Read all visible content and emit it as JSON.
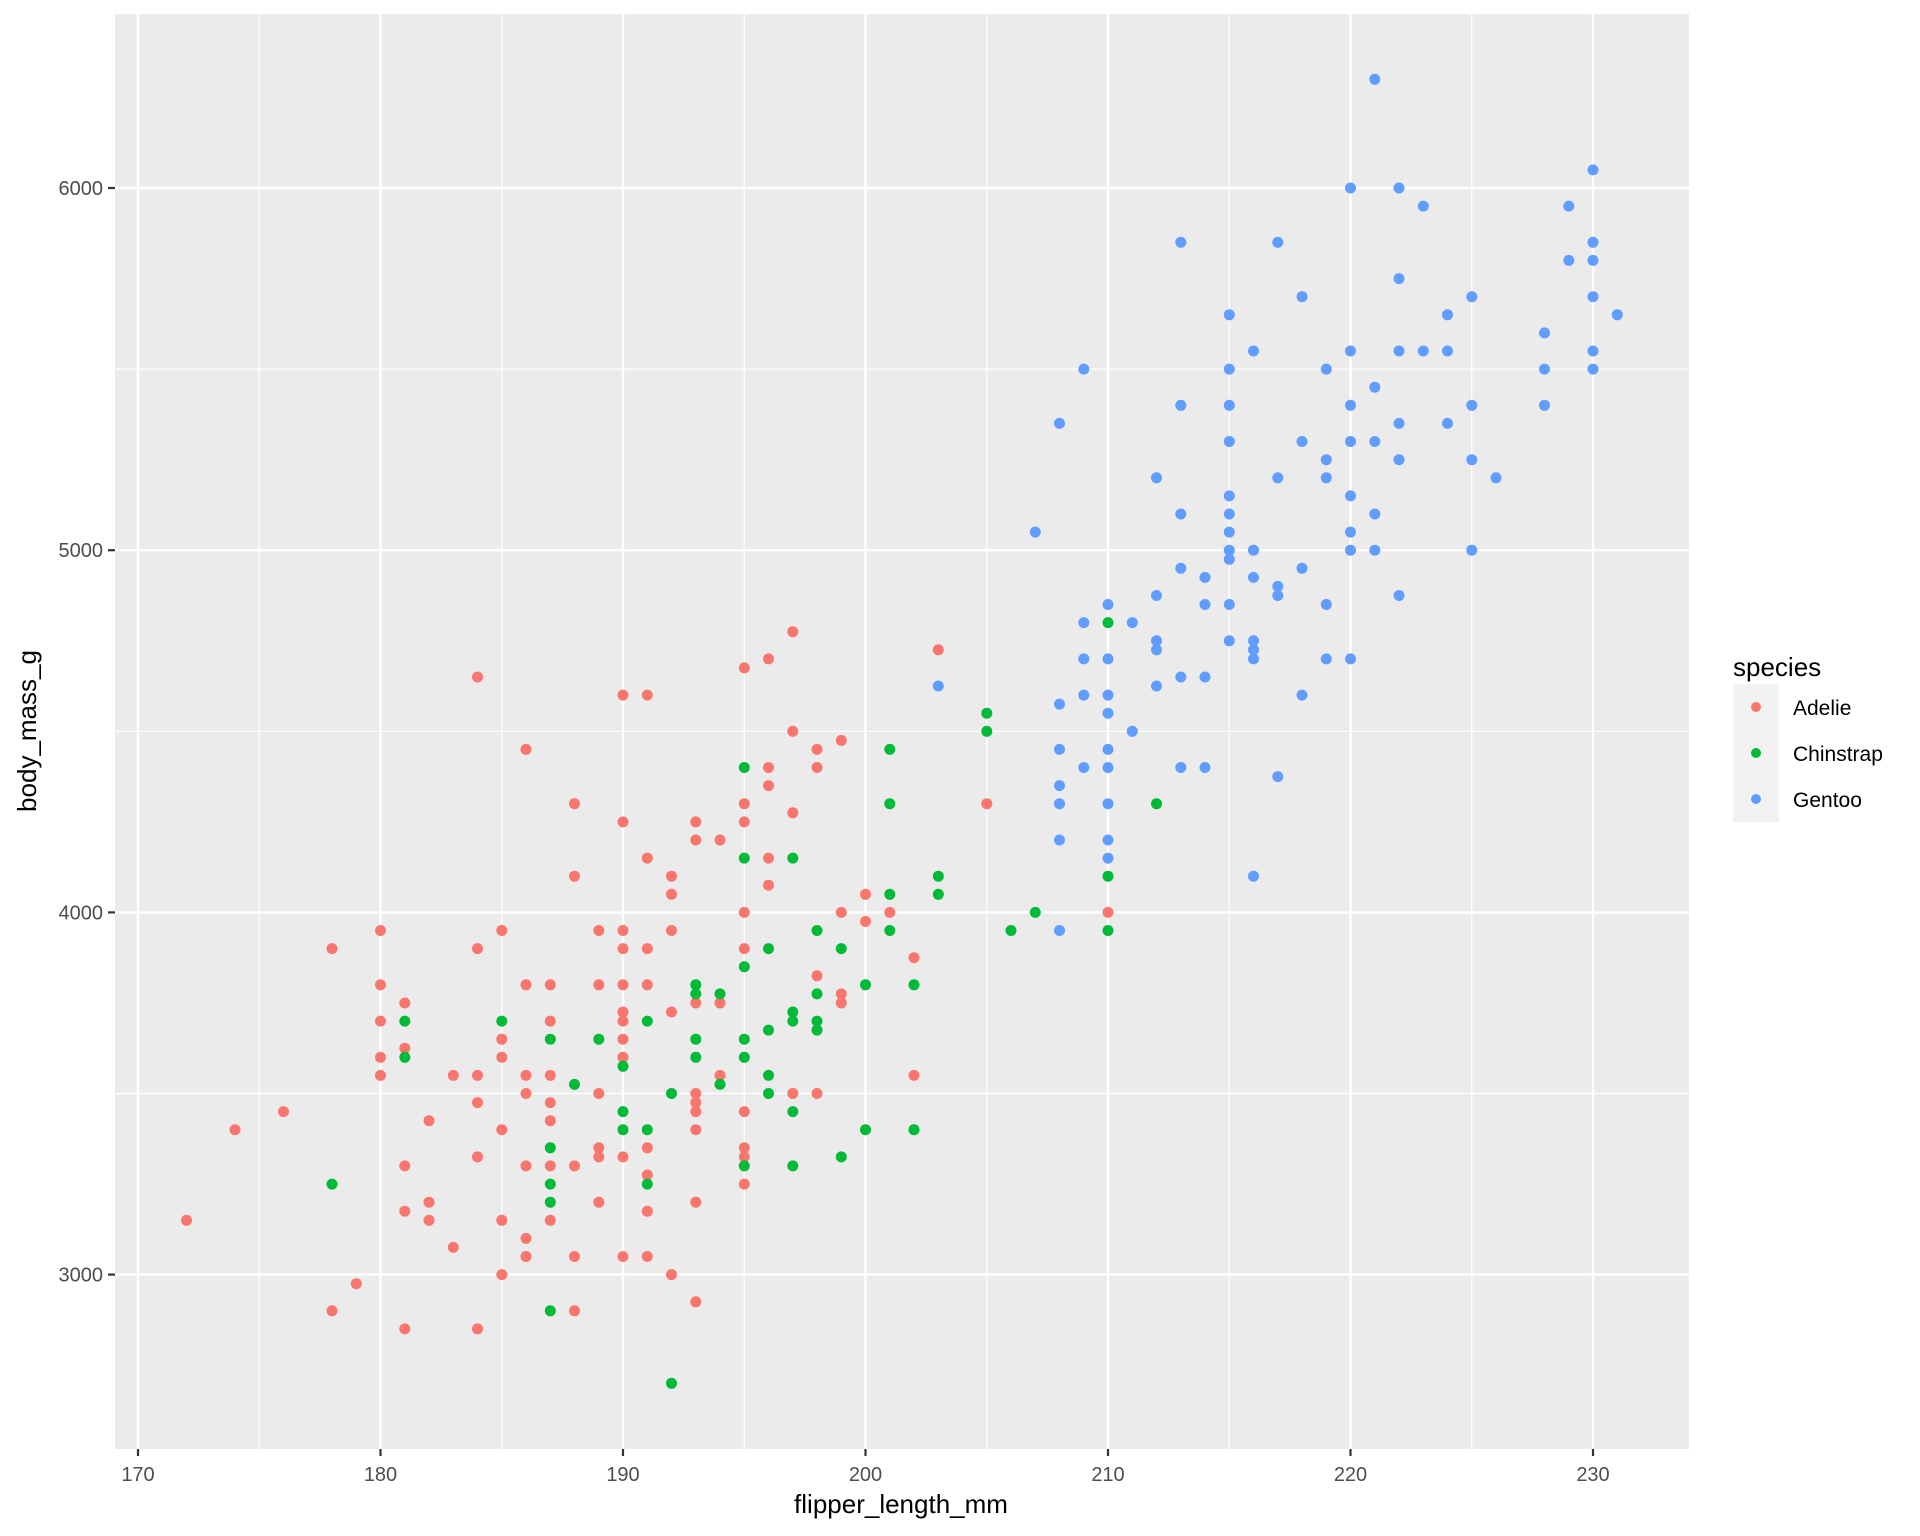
{
  "chart_data": {
    "type": "scatter",
    "title": "",
    "xlabel": "flipper_length_mm",
    "ylabel": "body_mass_g",
    "xlim": [
      168.95,
      233.85
    ],
    "ylim": [
      2565,
      6435
    ],
    "x_ticks": [
      170,
      180,
      190,
      200,
      210,
      220,
      230
    ],
    "y_ticks": [
      3000,
      4000,
      5000,
      6000
    ],
    "grid": true,
    "legend": {
      "title": "species",
      "position": "right",
      "entries": [
        "Adelie",
        "Chinstrap",
        "Gentoo"
      ]
    },
    "series": [
      {
        "name": "Adelie",
        "color": "#F8766D",
        "points": [
          [
            172,
            3150
          ],
          [
            174,
            3400
          ],
          [
            176,
            3450
          ],
          [
            178,
            3900
          ],
          [
            178,
            2900
          ],
          [
            179,
            2975
          ],
          [
            180,
            3950
          ],
          [
            180,
            3800
          ],
          [
            180,
            3700
          ],
          [
            180,
            3600
          ],
          [
            180,
            3550
          ],
          [
            181,
            3750
          ],
          [
            181,
            3625
          ],
          [
            181,
            3300
          ],
          [
            181,
            3175
          ],
          [
            181,
            2850
          ],
          [
            182,
            3425
          ],
          [
            182,
            3200
          ],
          [
            182,
            3150
          ],
          [
            183,
            3550
          ],
          [
            183,
            3075
          ],
          [
            184,
            4650
          ],
          [
            184,
            3900
          ],
          [
            184,
            3550
          ],
          [
            184,
            3475
          ],
          [
            184,
            3325
          ],
          [
            184,
            2850
          ],
          [
            185,
            3950
          ],
          [
            185,
            3650
          ],
          [
            185,
            3600
          ],
          [
            185,
            3400
          ],
          [
            185,
            3150
          ],
          [
            185,
            3000
          ],
          [
            186,
            4450
          ],
          [
            186,
            3800
          ],
          [
            186,
            3550
          ],
          [
            186,
            3500
          ],
          [
            186,
            3300
          ],
          [
            186,
            3100
          ],
          [
            186,
            3050
          ],
          [
            187,
            3800
          ],
          [
            187,
            3700
          ],
          [
            187,
            3550
          ],
          [
            187,
            3475
          ],
          [
            187,
            3425
          ],
          [
            187,
            3300
          ],
          [
            187,
            3150
          ],
          [
            188,
            4300
          ],
          [
            188,
            4100
          ],
          [
            188,
            3300
          ],
          [
            188,
            3050
          ],
          [
            188,
            2900
          ],
          [
            189,
            3950
          ],
          [
            189,
            3800
          ],
          [
            189,
            3500
          ],
          [
            189,
            3350
          ],
          [
            189,
            3325
          ],
          [
            189,
            3200
          ],
          [
            190,
            4600
          ],
          [
            190,
            4250
          ],
          [
            190,
            3950
          ],
          [
            190,
            3900
          ],
          [
            190,
            3800
          ],
          [
            190,
            3725
          ],
          [
            190,
            3700
          ],
          [
            190,
            3650
          ],
          [
            190,
            3600
          ],
          [
            190,
            3325
          ],
          [
            190,
            3050
          ],
          [
            191,
            4600
          ],
          [
            191,
            4150
          ],
          [
            191,
            3900
          ],
          [
            191,
            3800
          ],
          [
            191,
            3350
          ],
          [
            191,
            3275
          ],
          [
            191,
            3175
          ],
          [
            191,
            3050
          ],
          [
            192,
            4100
          ],
          [
            192,
            4050
          ],
          [
            192,
            3950
          ],
          [
            192,
            3725
          ],
          [
            192,
            3000
          ],
          [
            193,
            4250
          ],
          [
            193,
            4200
          ],
          [
            193,
            3750
          ],
          [
            193,
            3500
          ],
          [
            193,
            3475
          ],
          [
            193,
            3450
          ],
          [
            193,
            3400
          ],
          [
            193,
            3200
          ],
          [
            193,
            2925
          ],
          [
            194,
            4200
          ],
          [
            194,
            3750
          ],
          [
            194,
            3550
          ],
          [
            195,
            4675
          ],
          [
            195,
            4300
          ],
          [
            195,
            4250
          ],
          [
            195,
            4000
          ],
          [
            195,
            3900
          ],
          [
            195,
            3450
          ],
          [
            195,
            3350
          ],
          [
            195,
            3325
          ],
          [
            195,
            3250
          ],
          [
            196,
            4700
          ],
          [
            196,
            4400
          ],
          [
            196,
            4350
          ],
          [
            196,
            4150
          ],
          [
            196,
            4075
          ],
          [
            197,
            4775
          ],
          [
            197,
            4500
          ],
          [
            197,
            4275
          ],
          [
            197,
            3500
          ],
          [
            198,
            4450
          ],
          [
            198,
            4400
          ],
          [
            198,
            3825
          ],
          [
            198,
            3500
          ],
          [
            199,
            4475
          ],
          [
            199,
            4000
          ],
          [
            199,
            3775
          ],
          [
            199,
            3750
          ],
          [
            200,
            4050
          ],
          [
            200,
            3975
          ],
          [
            201,
            4000
          ],
          [
            202,
            3875
          ],
          [
            202,
            3550
          ],
          [
            203,
            4725
          ],
          [
            205,
            4300
          ],
          [
            210,
            4000
          ]
        ]
      },
      {
        "name": "Chinstrap",
        "color": "#00BA38",
        "points": [
          [
            178,
            3250
          ],
          [
            181,
            3700
          ],
          [
            181,
            3600
          ],
          [
            185,
            3700
          ],
          [
            187,
            3650
          ],
          [
            187,
            3350
          ],
          [
            187,
            3250
          ],
          [
            187,
            3200
          ],
          [
            187,
            2900
          ],
          [
            188,
            3525
          ],
          [
            189,
            3650
          ],
          [
            190,
            3575
          ],
          [
            190,
            3450
          ],
          [
            190,
            3400
          ],
          [
            191,
            3700
          ],
          [
            191,
            3400
          ],
          [
            191,
            3250
          ],
          [
            192,
            3500
          ],
          [
            192,
            2700
          ],
          [
            193,
            3800
          ],
          [
            193,
            3775
          ],
          [
            193,
            3650
          ],
          [
            193,
            3600
          ],
          [
            194,
            3775
          ],
          [
            194,
            3525
          ],
          [
            195,
            4400
          ],
          [
            195,
            4150
          ],
          [
            195,
            3850
          ],
          [
            195,
            3650
          ],
          [
            195,
            3600
          ],
          [
            195,
            3300
          ],
          [
            196,
            3900
          ],
          [
            196,
            3675
          ],
          [
            196,
            3550
          ],
          [
            196,
            3500
          ],
          [
            197,
            4150
          ],
          [
            197,
            3725
          ],
          [
            197,
            3700
          ],
          [
            197,
            3450
          ],
          [
            197,
            3300
          ],
          [
            198,
            3950
          ],
          [
            198,
            3775
          ],
          [
            198,
            3700
          ],
          [
            198,
            3675
          ],
          [
            199,
            3900
          ],
          [
            199,
            3325
          ],
          [
            200,
            3800
          ],
          [
            200,
            3400
          ],
          [
            201,
            4450
          ],
          [
            201,
            4300
          ],
          [
            201,
            4050
          ],
          [
            201,
            3950
          ],
          [
            202,
            3800
          ],
          [
            202,
            3400
          ],
          [
            203,
            4100
          ],
          [
            203,
            4050
          ],
          [
            205,
            4550
          ],
          [
            205,
            4500
          ],
          [
            206,
            3950
          ],
          [
            207,
            4000
          ],
          [
            210,
            4800
          ],
          [
            210,
            4100
          ],
          [
            210,
            3950
          ],
          [
            212,
            4300
          ]
        ]
      },
      {
        "name": "Gentoo",
        "color": "#619CFF",
        "points": [
          [
            203,
            4625
          ],
          [
            207,
            5050
          ],
          [
            208,
            5350
          ],
          [
            208,
            4575
          ],
          [
            208,
            4450
          ],
          [
            208,
            4350
          ],
          [
            208,
            4300
          ],
          [
            208,
            4200
          ],
          [
            208,
            3950
          ],
          [
            209,
            5500
          ],
          [
            209,
            4800
          ],
          [
            209,
            4700
          ],
          [
            209,
            4600
          ],
          [
            209,
            4400
          ],
          [
            210,
            4850
          ],
          [
            210,
            4700
          ],
          [
            210,
            4600
          ],
          [
            210,
            4550
          ],
          [
            210,
            4450
          ],
          [
            210,
            4400
          ],
          [
            210,
            4300
          ],
          [
            210,
            4200
          ],
          [
            210,
            4150
          ],
          [
            211,
            4800
          ],
          [
            211,
            4500
          ],
          [
            212,
            5200
          ],
          [
            212,
            4875
          ],
          [
            212,
            4750
          ],
          [
            212,
            4725
          ],
          [
            212,
            4625
          ],
          [
            213,
            5850
          ],
          [
            213,
            5400
          ],
          [
            213,
            5100
          ],
          [
            213,
            4950
          ],
          [
            213,
            4650
          ],
          [
            213,
            4400
          ],
          [
            214,
            4925
          ],
          [
            214,
            4850
          ],
          [
            214,
            4650
          ],
          [
            214,
            4400
          ],
          [
            215,
            5650
          ],
          [
            215,
            5500
          ],
          [
            215,
            5400
          ],
          [
            215,
            5300
          ],
          [
            215,
            5150
          ],
          [
            215,
            5100
          ],
          [
            215,
            5050
          ],
          [
            215,
            5000
          ],
          [
            215,
            4975
          ],
          [
            215,
            4850
          ],
          [
            215,
            4750
          ],
          [
            216,
            5550
          ],
          [
            216,
            5000
          ],
          [
            216,
            4925
          ],
          [
            216,
            4750
          ],
          [
            216,
            4725
          ],
          [
            216,
            4700
          ],
          [
            216,
            4100
          ],
          [
            217,
            5850
          ],
          [
            217,
            5200
          ],
          [
            217,
            4900
          ],
          [
            217,
            4875
          ],
          [
            217,
            4375
          ],
          [
            218,
            5700
          ],
          [
            218,
            5300
          ],
          [
            218,
            4950
          ],
          [
            218,
            4600
          ],
          [
            219,
            5500
          ],
          [
            219,
            5250
          ],
          [
            219,
            5200
          ],
          [
            219,
            4850
          ],
          [
            219,
            4700
          ],
          [
            220,
            6000
          ],
          [
            220,
            5550
          ],
          [
            220,
            5400
          ],
          [
            220,
            5300
          ],
          [
            220,
            5150
          ],
          [
            220,
            5050
          ],
          [
            220,
            5000
          ],
          [
            220,
            4700
          ],
          [
            221,
            6300
          ],
          [
            221,
            5450
          ],
          [
            221,
            5300
          ],
          [
            221,
            5100
          ],
          [
            221,
            5000
          ],
          [
            222,
            6000
          ],
          [
            222,
            5750
          ],
          [
            222,
            5550
          ],
          [
            222,
            5350
          ],
          [
            222,
            5250
          ],
          [
            222,
            4875
          ],
          [
            223,
            5950
          ],
          [
            223,
            5550
          ],
          [
            224,
            5650
          ],
          [
            224,
            5550
          ],
          [
            224,
            5350
          ],
          [
            225,
            5700
          ],
          [
            225,
            5400
          ],
          [
            225,
            5250
          ],
          [
            225,
            5000
          ],
          [
            226,
            5200
          ],
          [
            228,
            5600
          ],
          [
            228,
            5500
          ],
          [
            228,
            5400
          ],
          [
            229,
            5950
          ],
          [
            229,
            5800
          ],
          [
            230,
            6050
          ],
          [
            230,
            5850
          ],
          [
            230,
            5800
          ],
          [
            230,
            5700
          ],
          [
            230,
            5550
          ],
          [
            230,
            5500
          ],
          [
            231,
            5650
          ]
        ]
      }
    ]
  },
  "colors": {
    "panel_background": "#EBEBEB",
    "grid_major": "#FFFFFF",
    "legend_key_background": "#F2F2F2",
    "tick_text": "#4D4D4D",
    "axis_title_text": "#000000"
  }
}
